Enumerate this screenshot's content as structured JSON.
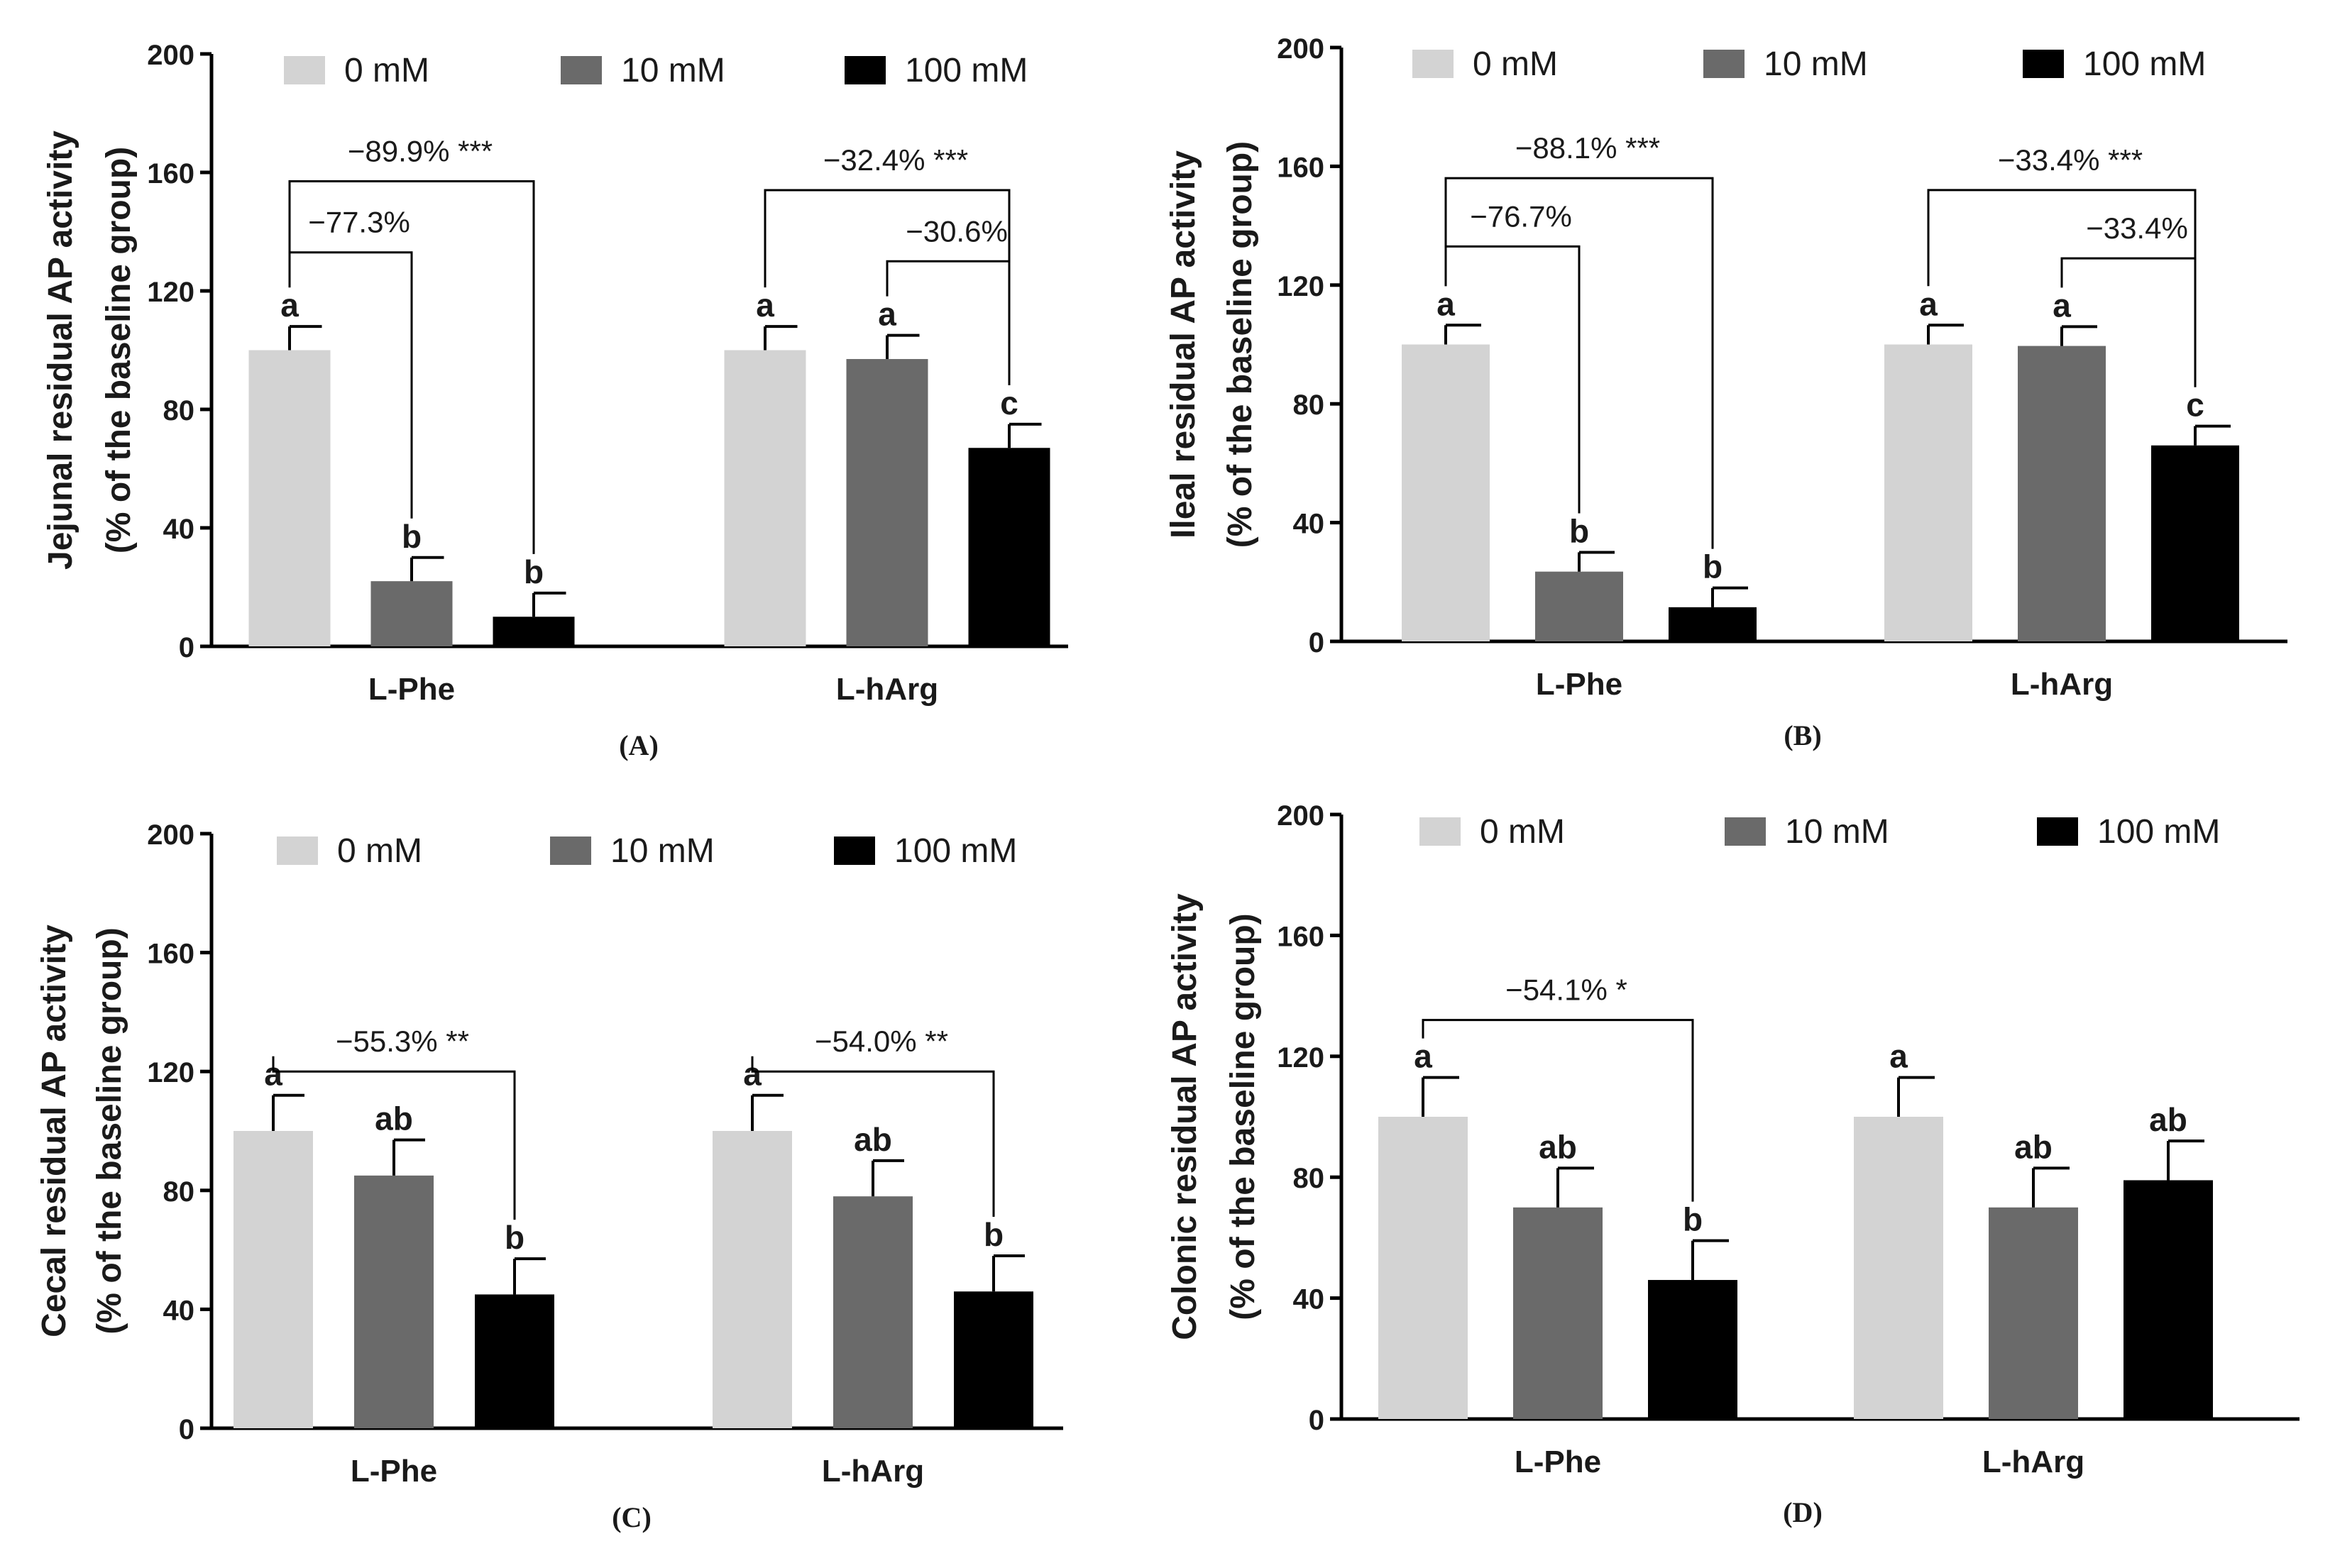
{
  "legend": [
    "0 mM",
    "10 mM",
    "100 mM"
  ],
  "colors": {
    "series": [
      "#d3d3d3",
      "#6a6a6a",
      "#000000"
    ],
    "axis": "#000000",
    "text": "#1a1a1a"
  },
  "chart_data": [
    {
      "panel": "(A)",
      "type": "bar",
      "ylabel": [
        "Jejunal residual AP activity",
        "(% of the baseline group)"
      ],
      "ylim": [
        0,
        200
      ],
      "yticks": [
        "0",
        "40",
        "80",
        "120",
        "160",
        "200"
      ],
      "categories": [
        "L-Phe",
        "L-hArg"
      ],
      "series": [
        {
          "name": "0 mM",
          "values": [
            100,
            100
          ],
          "errors": [
            8,
            8
          ],
          "letters": [
            "a",
            "a"
          ]
        },
        {
          "name": "10 mM",
          "values": [
            22,
            97
          ],
          "errors": [
            8,
            8
          ],
          "letters": [
            "b",
            "a"
          ]
        },
        {
          "name": "100 mM",
          "values": [
            10,
            67
          ],
          "errors": [
            8,
            8
          ],
          "letters": [
            "b",
            "c"
          ]
        }
      ],
      "brackets": [
        {
          "group": 0,
          "from": 0,
          "to": 2,
          "text": "−89.9% ***",
          "level": 157
        },
        {
          "group": 0,
          "from": 0,
          "to": 1,
          "text": "−77.3%",
          "level": 133
        },
        {
          "group": 1,
          "from": 0,
          "to": 2,
          "text": "−32.4% ***",
          "level": 154
        },
        {
          "group": 1,
          "from": 1,
          "to": 2,
          "text": "−30.6%",
          "level": 130
        }
      ]
    },
    {
      "panel": "(B)",
      "type": "bar",
      "ylabel": [
        "Ileal residual AP activity",
        "(% of the baseline group)"
      ],
      "ylim": [
        0,
        200
      ],
      "yticks": [
        "0",
        "40",
        "80",
        "120",
        "160",
        "200"
      ],
      "categories": [
        "L-Phe",
        "L-hArg"
      ],
      "series": [
        {
          "name": "0 mM",
          "values": [
            100,
            100
          ],
          "errors": [
            6.5,
            6.5
          ],
          "letters": [
            "a",
            "a"
          ]
        },
        {
          "name": "10 mM",
          "values": [
            23.5,
            99.5
          ],
          "errors": [
            6.5,
            6.5
          ],
          "letters": [
            "b",
            "a"
          ]
        },
        {
          "name": "100 mM",
          "values": [
            11.5,
            66
          ],
          "errors": [
            6.5,
            6.5
          ],
          "letters": [
            "b",
            "c"
          ]
        }
      ],
      "brackets": [
        {
          "group": 0,
          "from": 0,
          "to": 2,
          "text": "−88.1% ***",
          "level": 156
        },
        {
          "group": 0,
          "from": 0,
          "to": 1,
          "text": "−76.7%",
          "level": 133
        },
        {
          "group": 1,
          "from": 0,
          "to": 2,
          "text": "−33.4% ***",
          "level": 152
        },
        {
          "group": 1,
          "from": 1,
          "to": 2,
          "text": "−33.4%",
          "level": 129
        }
      ]
    },
    {
      "panel": "(C)",
      "type": "bar",
      "ylabel": [
        "Cecal residual AP activity",
        "(% of the baseline group)"
      ],
      "ylim": [
        0,
        200
      ],
      "yticks": [
        "0",
        "40",
        "80",
        "120",
        "160",
        "200"
      ],
      "categories": [
        "L-Phe",
        "L-hArg"
      ],
      "series": [
        {
          "name": "0 mM",
          "values": [
            100,
            100
          ],
          "errors": [
            12,
            12
          ],
          "letters": [
            "a",
            "a"
          ]
        },
        {
          "name": "10 mM",
          "values": [
            85,
            78
          ],
          "errors": [
            12,
            12
          ],
          "letters": [
            "ab",
            "ab"
          ]
        },
        {
          "name": "100 mM",
          "values": [
            45,
            46
          ],
          "errors": [
            12,
            12
          ],
          "letters": [
            "b",
            "b"
          ]
        }
      ],
      "brackets": [
        {
          "group": 0,
          "from": 0,
          "to": 2,
          "text": "−55.3% **",
          "level": 120
        },
        {
          "group": 1,
          "from": 0,
          "to": 2,
          "text": "−54.0% **",
          "level": 120
        }
      ]
    },
    {
      "panel": "(D)",
      "type": "bar",
      "ylabel": [
        "Colonic residual AP activity",
        "(% of the baseline group)"
      ],
      "ylim": [
        0,
        200
      ],
      "yticks": [
        "0",
        "40",
        "80",
        "120",
        "160",
        "200"
      ],
      "categories": [
        "L-Phe",
        "L-hArg"
      ],
      "series": [
        {
          "name": "0 mM",
          "values": [
            100,
            100
          ],
          "errors": [
            13,
            13
          ],
          "letters": [
            "a",
            "a"
          ]
        },
        {
          "name": "10 mM",
          "values": [
            70,
            70
          ],
          "errors": [
            13,
            13
          ],
          "letters": [
            "ab",
            "ab"
          ]
        },
        {
          "name": "100 mM",
          "values": [
            46,
            79
          ],
          "errors": [
            13,
            13
          ],
          "letters": [
            "b",
            "ab"
          ]
        }
      ],
      "brackets": [
        {
          "group": 0,
          "from": 0,
          "to": 2,
          "text": "−54.1% *",
          "level": 132
        }
      ]
    }
  ]
}
